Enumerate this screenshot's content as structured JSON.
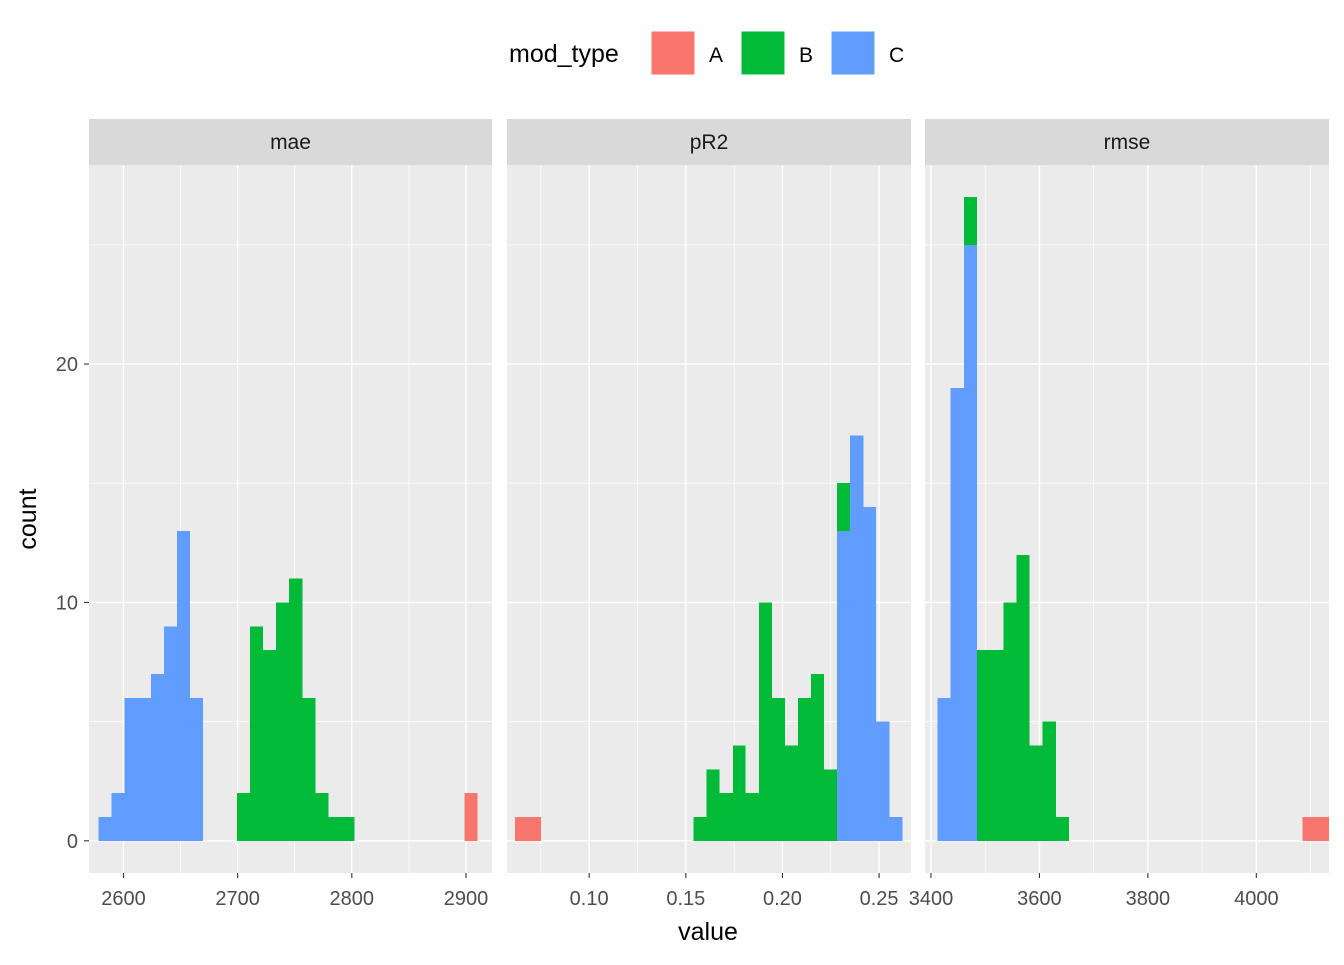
{
  "chart_data": {
    "type": "bar",
    "subtype": "faceted-stacked-histogram",
    "xlabel": "value",
    "ylabel": "count",
    "ylim": [
      -1.35,
      28.35
    ],
    "y_ticks": [
      0,
      10,
      20
    ],
    "grid": true,
    "legend": {
      "title": "mod_type",
      "placement": "top",
      "entries": [
        {
          "name": "A",
          "color": "#F8766D"
        },
        {
          "name": "B",
          "color": "#00BA38"
        },
        {
          "name": "C",
          "color": "#619CFF"
        }
      ]
    },
    "facets": [
      {
        "label": "mae",
        "xlim": [
          2569.8,
          2922.8
        ],
        "x_ticks": [
          2600,
          2700,
          2800,
          2900
        ],
        "x_tick_labels": [
          "2600",
          "2700",
          "2800",
          "2900"
        ],
        "binwidth": 11.4,
        "bins": [
          {
            "x0": 2578.3,
            "x1": 2589.7,
            "A": 0,
            "B": 0,
            "C": 1
          },
          {
            "x0": 2589.7,
            "x1": 2601.1,
            "A": 0,
            "B": 0,
            "C": 2
          },
          {
            "x0": 2601.1,
            "x1": 2612.5,
            "A": 0,
            "B": 0,
            "C": 6
          },
          {
            "x0": 2612.5,
            "x1": 2623.9,
            "A": 0,
            "B": 0,
            "C": 6
          },
          {
            "x0": 2623.9,
            "x1": 2635.3,
            "A": 0,
            "B": 0,
            "C": 7
          },
          {
            "x0": 2635.3,
            "x1": 2646.7,
            "A": 0,
            "B": 0,
            "C": 9
          },
          {
            "x0": 2646.7,
            "x1": 2658.1,
            "A": 0,
            "B": 0,
            "C": 13
          },
          {
            "x0": 2658.1,
            "x1": 2669.5,
            "A": 0,
            "B": 0,
            "C": 6
          },
          {
            "x0": 2699.6,
            "x1": 2711.0,
            "A": 0,
            "B": 2,
            "C": 0
          },
          {
            "x0": 2711.0,
            "x1": 2722.4,
            "A": 0,
            "B": 9,
            "C": 0
          },
          {
            "x0": 2722.4,
            "x1": 2733.8,
            "A": 0,
            "B": 8,
            "C": 0
          },
          {
            "x0": 2733.8,
            "x1": 2745.2,
            "A": 0,
            "B": 10,
            "C": 0
          },
          {
            "x0": 2745.2,
            "x1": 2756.6,
            "A": 0,
            "B": 11,
            "C": 0
          },
          {
            "x0": 2756.6,
            "x1": 2768.0,
            "A": 0,
            "B": 6,
            "C": 0
          },
          {
            "x0": 2768.0,
            "x1": 2779.4,
            "A": 0,
            "B": 2,
            "C": 0
          },
          {
            "x0": 2779.4,
            "x1": 2790.8,
            "A": 0,
            "B": 1,
            "C": 0
          },
          {
            "x0": 2790.8,
            "x1": 2802.2,
            "A": 0,
            "B": 1,
            "C": 0
          },
          {
            "x0": 2898.7,
            "x1": 2910.1,
            "A": 2,
            "B": 0,
            "C": 0
          }
        ]
      },
      {
        "label": "pR2",
        "xlim": [
          0.0575,
          0.2665
        ],
        "x_ticks": [
          0.1,
          0.15,
          0.2,
          0.25
        ],
        "x_tick_labels": [
          "0.10",
          "0.15",
          "0.20",
          "0.25"
        ],
        "binwidth": 0.00675,
        "bins": [
          {
            "x0": 0.0617,
            "x1": 0.0752,
            "A": 1,
            "B": 0,
            "C": 0
          },
          {
            "x0": 0.154,
            "x1": 0.1608,
            "A": 0,
            "B": 1,
            "C": 0
          },
          {
            "x0": 0.1608,
            "x1": 0.1675,
            "A": 0,
            "B": 3,
            "C": 0
          },
          {
            "x0": 0.1675,
            "x1": 0.1743,
            "A": 0,
            "B": 2,
            "C": 0
          },
          {
            "x0": 0.1743,
            "x1": 0.181,
            "A": 0,
            "B": 4,
            "C": 0
          },
          {
            "x0": 0.181,
            "x1": 0.1878,
            "A": 0,
            "B": 2,
            "C": 0
          },
          {
            "x0": 0.1878,
            "x1": 0.1945,
            "A": 0,
            "B": 10,
            "C": 0
          },
          {
            "x0": 0.1945,
            "x1": 0.2013,
            "A": 0,
            "B": 6,
            "C": 0
          },
          {
            "x0": 0.2013,
            "x1": 0.208,
            "A": 0,
            "B": 4,
            "C": 0
          },
          {
            "x0": 0.208,
            "x1": 0.2148,
            "A": 0,
            "B": 6,
            "C": 0
          },
          {
            "x0": 0.2148,
            "x1": 0.2215,
            "A": 0,
            "B": 7,
            "C": 0
          },
          {
            "x0": 0.2215,
            "x1": 0.2283,
            "A": 0,
            "B": 3,
            "C": 0
          },
          {
            "x0": 0.2283,
            "x1": 0.235,
            "A": 0,
            "B": 2,
            "C": 13
          },
          {
            "x0": 0.235,
            "x1": 0.2418,
            "A": 0,
            "B": 0,
            "C": 17
          },
          {
            "x0": 0.2418,
            "x1": 0.2485,
            "A": 0,
            "B": 0,
            "C": 14
          },
          {
            "x0": 0.2485,
            "x1": 0.2553,
            "A": 0,
            "B": 0,
            "C": 5
          },
          {
            "x0": 0.2553,
            "x1": 0.262,
            "A": 0,
            "B": 0,
            "C": 1
          }
        ]
      },
      {
        "label": "rmse",
        "xlim": [
          3389.0,
          4134.0
        ],
        "x_ticks": [
          3400,
          3600,
          3800,
          4000
        ],
        "x_tick_labels": [
          "3400",
          "3600",
          "3800",
          "4000"
        ],
        "binwidth": 24.25,
        "bins": [
          {
            "x0": 3412.0,
            "x1": 3436.3,
            "A": 0,
            "B": 0,
            "C": 6
          },
          {
            "x0": 3436.3,
            "x1": 3460.5,
            "A": 0,
            "B": 0,
            "C": 19
          },
          {
            "x0": 3460.5,
            "x1": 3484.8,
            "A": 0,
            "B": 2,
            "C": 25
          },
          {
            "x0": 3484.8,
            "x1": 3509.0,
            "A": 0,
            "B": 8,
            "C": 0
          },
          {
            "x0": 3509.0,
            "x1": 3533.3,
            "A": 0,
            "B": 8,
            "C": 0
          },
          {
            "x0": 3533.3,
            "x1": 3557.5,
            "A": 0,
            "B": 10,
            "C": 0
          },
          {
            "x0": 3557.5,
            "x1": 3581.8,
            "A": 0,
            "B": 12,
            "C": 0
          },
          {
            "x0": 3581.8,
            "x1": 3606.0,
            "A": 0,
            "B": 4,
            "C": 0
          },
          {
            "x0": 3606.0,
            "x1": 3630.3,
            "A": 0,
            "B": 5,
            "C": 0
          },
          {
            "x0": 3630.3,
            "x1": 3654.5,
            "A": 0,
            "B": 1,
            "C": 0
          },
          {
            "x0": 4085.5,
            "x1": 4109.8,
            "A": 1,
            "B": 0,
            "C": 0
          },
          {
            "x0": 4109.8,
            "x1": 4134.0,
            "A": 1,
            "B": 0,
            "C": 0
          }
        ]
      }
    ]
  }
}
